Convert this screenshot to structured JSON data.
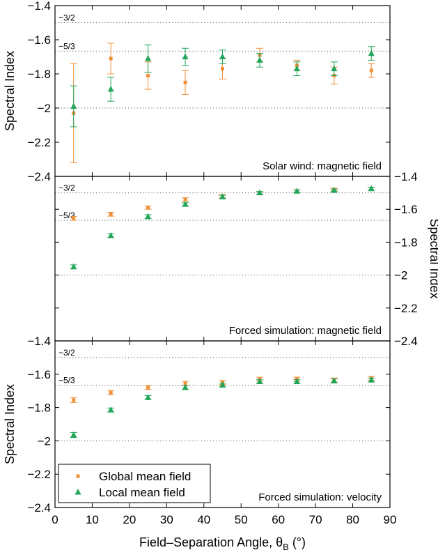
{
  "colors": {
    "global": "#F0903A",
    "local": "#1FA65A",
    "refline": "#555555",
    "axis": "#000000"
  },
  "chart_data": {
    "type": "scatter",
    "xlabel": "Field–Separation Angle, θ",
    "xlabel_sub": "B",
    "xlabel_suffix": " (°)",
    "xlim": [
      0,
      90
    ],
    "xticks": [
      0,
      10,
      20,
      30,
      40,
      50,
      60,
      70,
      80,
      90
    ],
    "x": [
      5,
      15,
      25,
      35,
      45,
      55,
      65,
      75,
      85
    ],
    "legend": {
      "placement": "bottom-left",
      "entries": [
        {
          "name": "Global mean field",
          "marker": "square",
          "color": "#F0903A"
        },
        {
          "name": "Local mean field",
          "marker": "triangle",
          "color": "#1FA65A"
        }
      ]
    },
    "panels": [
      {
        "label": "Solar wind: magnetic field",
        "ylabel": "Spectral Index",
        "ylabel_side": "left",
        "ylim": [
          -2.4,
          -1.4
        ],
        "yticks": [
          -2.4,
          -2.2,
          -2.0,
          -1.8,
          -1.6,
          -1.4
        ],
        "ytick_labels": [
          "−2.4",
          "−2.2",
          "−2",
          "−1.8",
          "−1.6",
          "−1.4"
        ],
        "reference_lines": [
          {
            "label": "−3/2",
            "value": -1.5
          },
          {
            "label": "−5/3",
            "value": -1.6667
          },
          {
            "label": "",
            "value": -2.0
          }
        ],
        "series": [
          {
            "name": "Global mean field",
            "values": [
              -2.03,
              -1.71,
              -1.81,
              -1.85,
              -1.77,
              -1.69,
              -1.75,
              -1.81,
              -1.78
            ],
            "errors": [
              0.29,
              0.09,
              0.08,
              0.07,
              0.06,
              0.04,
              0.03,
              0.05,
              0.04
            ]
          },
          {
            "name": "Local mean field",
            "values": [
              -1.99,
              -1.89,
              -1.71,
              -1.7,
              -1.7,
              -1.72,
              -1.77,
              -1.77,
              -1.68
            ],
            "errors": [
              0.12,
              0.07,
              0.08,
              0.05,
              0.04,
              0.04,
              0.04,
              0.04,
              0.04
            ]
          }
        ]
      },
      {
        "label": "Forced simulation: magnetic field",
        "ylabel": "Spectral Index",
        "ylabel_side": "right",
        "ylim": [
          -2.4,
          -1.4
        ],
        "yticks": [
          -2.4,
          -2.2,
          -2.0,
          -1.8,
          -1.6,
          -1.4
        ],
        "ytick_labels": [
          "−2.4",
          "−2.2",
          "−2",
          "−1.8",
          "−1.6",
          "−1.4"
        ],
        "reference_lines": [
          {
            "label": "−3/2",
            "value": -1.5
          },
          {
            "label": "−5/3",
            "value": -1.6667
          },
          {
            "label": "",
            "value": -2.0
          }
        ],
        "series": [
          {
            "name": "Global mean field",
            "values": [
              -1.655,
              -1.63,
              -1.59,
              -1.54,
              -1.52,
              -1.5,
              -1.49,
              -1.48,
              -1.475
            ],
            "errors": [
              0.012,
              0.012,
              0.01,
              0.01,
              0.01,
              0.008,
              0.008,
              0.008,
              0.008
            ]
          },
          {
            "name": "Local mean field",
            "values": [
              -1.95,
              -1.76,
              -1.645,
              -1.57,
              -1.525,
              -1.5,
              -1.49,
              -1.485,
              -1.475
            ],
            "errors": [
              0.012,
              0.012,
              0.012,
              0.01,
              0.01,
              0.008,
              0.008,
              0.008,
              0.008
            ]
          }
        ]
      },
      {
        "label": "Forced simulation: velocity",
        "ylabel": "Spectral Index",
        "ylabel_side": "left",
        "ylim": [
          -2.4,
          -1.4
        ],
        "yticks": [
          -2.4,
          -2.2,
          -2.0,
          -1.8,
          -1.6,
          -1.4
        ],
        "ytick_labels": [
          "−2.4",
          "−2.2",
          "−2",
          "−1.8",
          "−1.6",
          "−1.4"
        ],
        "reference_lines": [
          {
            "label": "−3/2",
            "value": -1.5
          },
          {
            "label": "−5/3",
            "value": -1.6667
          },
          {
            "label": "",
            "value": -2.0
          }
        ],
        "series": [
          {
            "name": "Global mean field",
            "values": [
              -1.755,
              -1.71,
              -1.68,
              -1.655,
              -1.65,
              -1.63,
              -1.63,
              -1.635,
              -1.625
            ],
            "errors": [
              0.015,
              0.012,
              0.012,
              0.012,
              0.012,
              0.012,
              0.012,
              0.012,
              0.012
            ]
          },
          {
            "name": "Local mean field",
            "values": [
              -1.965,
              -1.815,
              -1.74,
              -1.68,
              -1.665,
              -1.645,
              -1.645,
              -1.64,
              -1.635
            ],
            "errors": [
              0.015,
              0.012,
              0.012,
              0.012,
              0.012,
              0.012,
              0.012,
              0.012,
              0.012
            ]
          }
        ]
      }
    ]
  }
}
